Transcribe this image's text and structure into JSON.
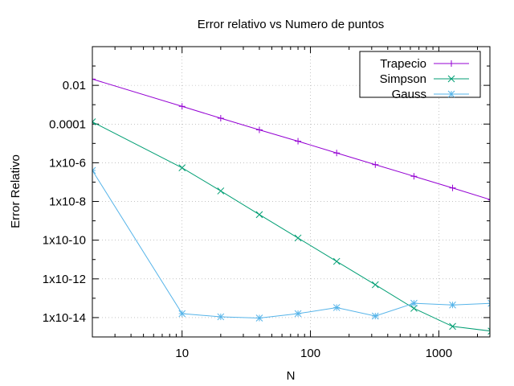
{
  "chart_data": {
    "type": "line",
    "title": "Error relativo vs Numero de puntos",
    "xlabel": "N",
    "ylabel": "Error Relativo",
    "xscale": "log",
    "yscale": "log",
    "xlim": [
      2,
      2500
    ],
    "ylim": [
      1e-15,
      1
    ],
    "grid": true,
    "legend_position": "top-right",
    "x_ticks": [
      {
        "value": 10,
        "label": "10"
      },
      {
        "value": 100,
        "label": "100"
      },
      {
        "value": 1000,
        "label": "1000"
      }
    ],
    "y_ticks": [
      {
        "value": 0.01,
        "label": "0.01"
      },
      {
        "value": 0.0001,
        "label": "0.0001"
      },
      {
        "value": 1e-06,
        "label": "1x10-6"
      },
      {
        "value": 1e-08,
        "label": "1x10-8"
      },
      {
        "value": 1e-10,
        "label": "1x10-10"
      },
      {
        "value": 1e-12,
        "label": "1x10-12"
      },
      {
        "value": 1e-14,
        "label": "1x10-14"
      }
    ],
    "series": [
      {
        "name": "Trapecio",
        "color": "#9400d3",
        "marker": "plus",
        "x": [
          2,
          10,
          20,
          40,
          80,
          160,
          320,
          640,
          1280,
          2560
        ],
        "y": [
          0.021,
          0.00082,
          0.0002,
          5e-05,
          1.3e-05,
          3.2e-06,
          8e-07,
          2e-07,
          5e-08,
          1.2e-08
        ]
      },
      {
        "name": "Simpson",
        "color": "#009e73",
        "marker": "x",
        "x": [
          2,
          10,
          20,
          40,
          80,
          160,
          320,
          640,
          1280,
          2560
        ],
        "y": [
          0.00013,
          5.5e-07,
          3.5e-08,
          2.1e-09,
          1.3e-10,
          8e-12,
          5e-13,
          3e-14,
          3.5e-15,
          2e-15
        ]
      },
      {
        "name": "Gauss",
        "color": "#56b4e9",
        "marker": "star",
        "x": [
          2,
          10,
          20,
          40,
          80,
          160,
          320,
          640,
          1280,
          2560
        ],
        "y": [
          4e-07,
          1.6e-14,
          1.1e-14,
          9.5e-15,
          1.6e-14,
          3.3e-14,
          1.2e-14,
          5.5e-14,
          4.5e-14,
          5.5e-14
        ]
      }
    ]
  }
}
